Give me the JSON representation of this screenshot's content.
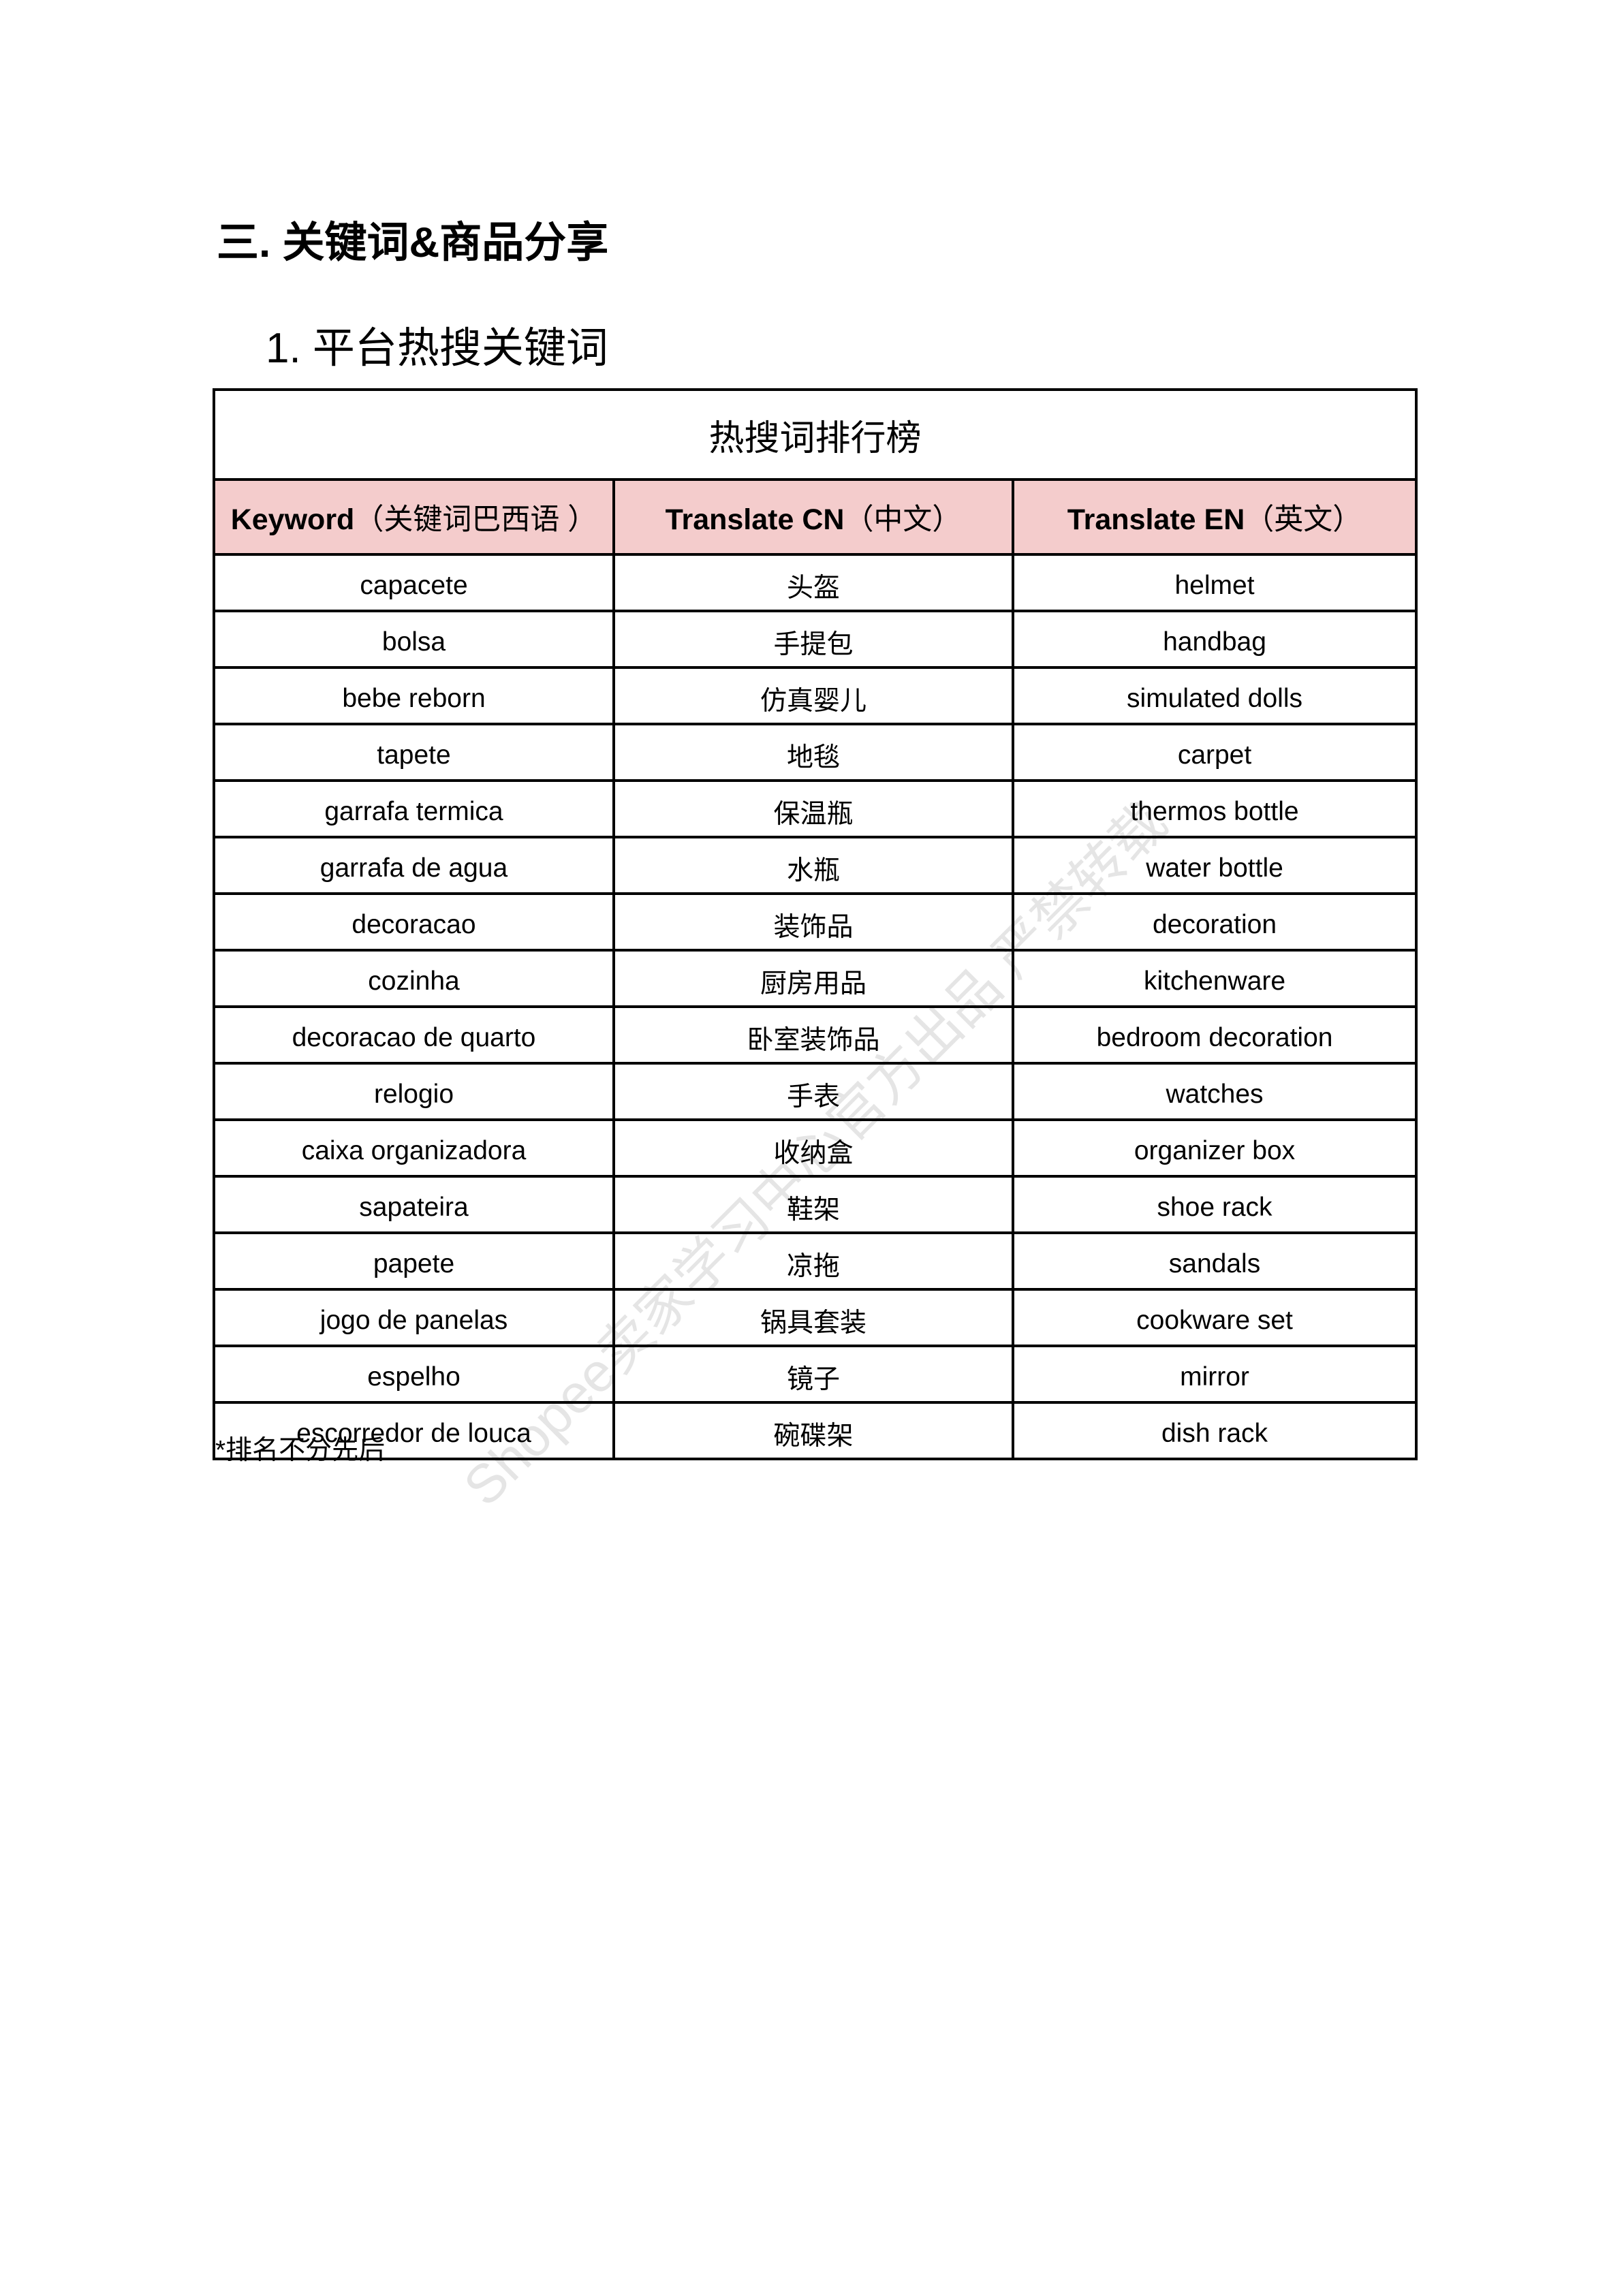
{
  "section_heading": "三. 关键词&商品分享",
  "subsection_heading": "1. 平台热搜关键词",
  "table": {
    "title": "热搜词排行榜",
    "headers": [
      {
        "bold": "Keyword",
        "cn": "（关键词巴西语 ）"
      },
      {
        "bold": "Translate CN",
        "cn": "（中文）"
      },
      {
        "bold": "Translate EN",
        "cn": "（英文）"
      }
    ],
    "header_bg": "#f4cccc",
    "rows": [
      [
        "capacete",
        "头盔",
        "helmet"
      ],
      [
        "bolsa",
        "手提包",
        "handbag"
      ],
      [
        "bebe reborn",
        "仿真婴儿",
        "simulated dolls"
      ],
      [
        "tapete",
        "地毯",
        "carpet"
      ],
      [
        "garrafa termica",
        "保温瓶",
        "thermos bottle"
      ],
      [
        "garrafa de agua",
        "水瓶",
        "water bottle"
      ],
      [
        "decoracao",
        "装饰品",
        "decoration"
      ],
      [
        "cozinha",
        "厨房用品",
        "kitchenware"
      ],
      [
        "decoracao de quarto",
        "卧室装饰品",
        "bedroom decoration"
      ],
      [
        "relogio",
        "手表",
        "watches"
      ],
      [
        "caixa organizadora",
        "收纳盒",
        "organizer box"
      ],
      [
        "sapateira",
        "鞋架",
        "shoe rack"
      ],
      [
        "papete",
        "凉拖",
        "sandals"
      ],
      [
        "jogo de panelas",
        "锅具套装",
        "cookware set"
      ],
      [
        "espelho",
        "镜子",
        "mirror"
      ],
      [
        "escorredor de louca",
        "碗碟架",
        "dish rack"
      ]
    ]
  },
  "footnote": "*排名不分先后",
  "watermark": "Shopee卖家学习中心官方出品 严禁转载"
}
